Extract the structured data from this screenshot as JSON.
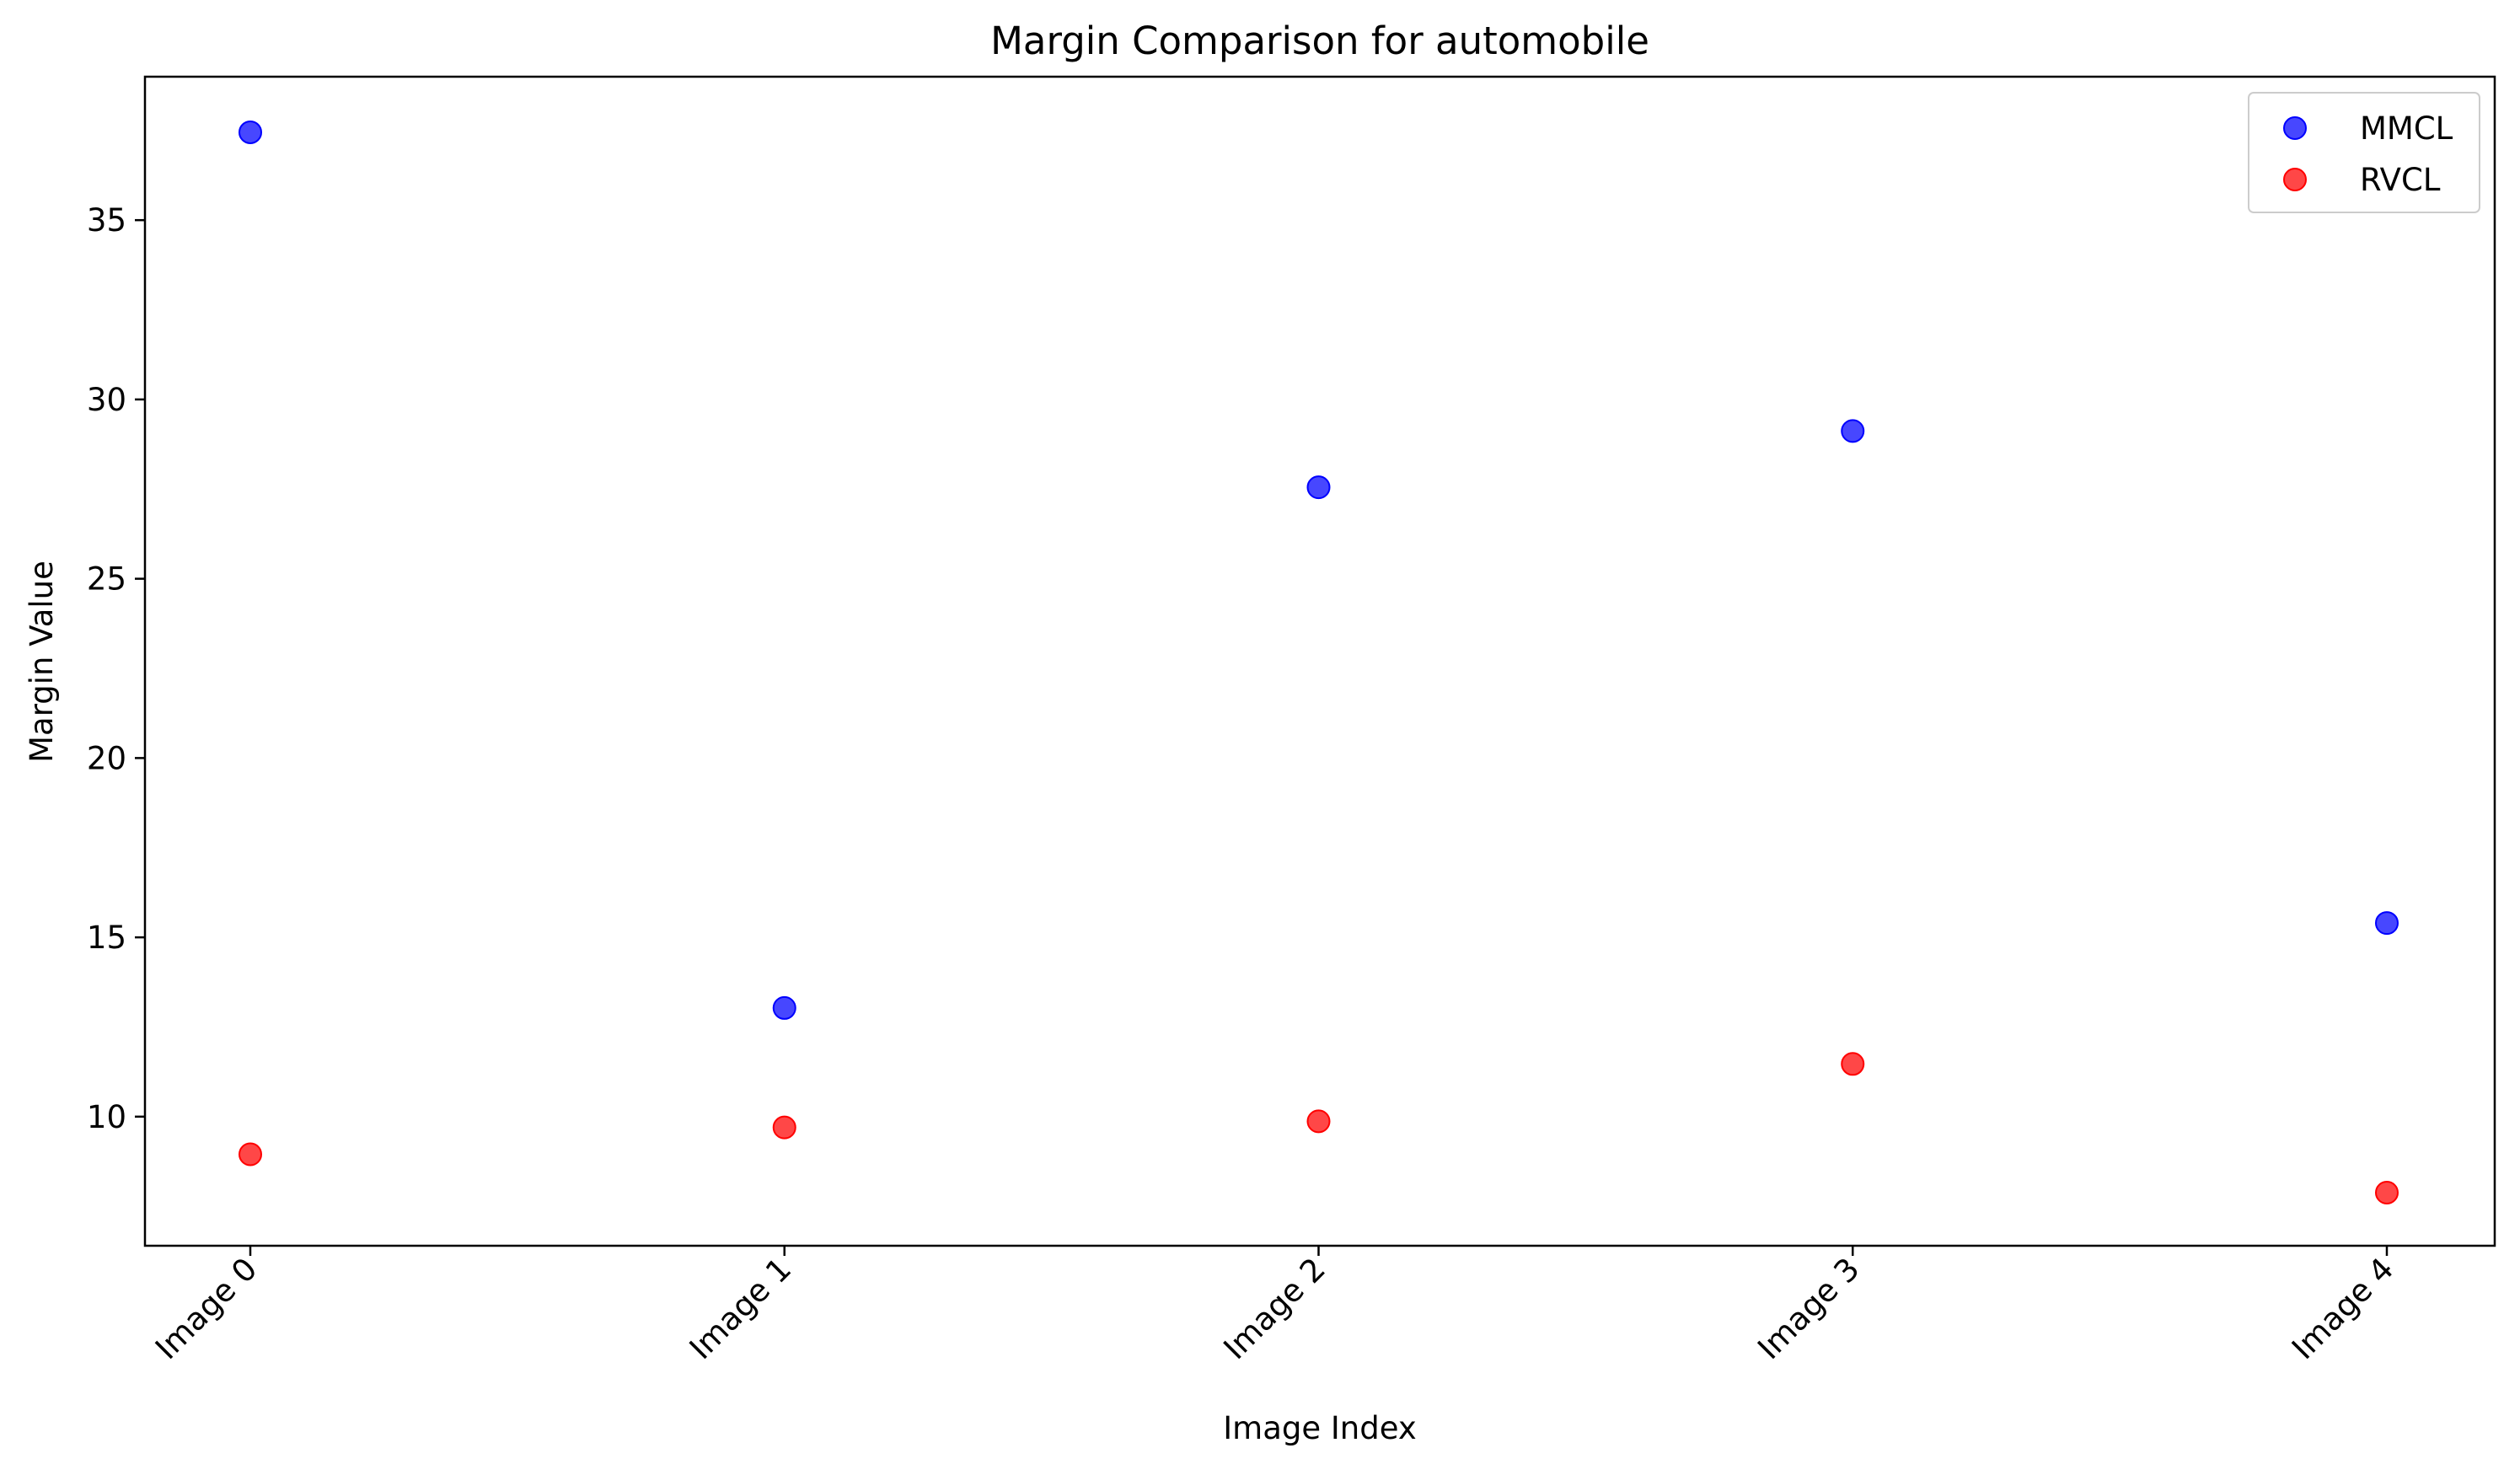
{
  "chart_data": {
    "type": "scatter",
    "title": "Margin Comparison for automobile",
    "xlabel": "Image Index",
    "ylabel": "Margin Value",
    "categories": [
      "Image 0",
      "Image 1",
      "Image 2",
      "Image 3",
      "Image 4"
    ],
    "series": [
      {
        "name": "MMCL",
        "color": "#0000ff",
        "values": [
          37.45,
          13.03,
          27.55,
          29.12,
          15.4
        ]
      },
      {
        "name": "RVCL",
        "color": "#ff0000",
        "values": [
          8.95,
          9.7,
          9.87,
          11.47,
          7.88
        ]
      }
    ],
    "yticks": [
      10,
      15,
      20,
      25,
      30,
      35
    ],
    "ylim": [
      6.4,
      39.0
    ],
    "grid": false,
    "legend_position": "top-right"
  }
}
